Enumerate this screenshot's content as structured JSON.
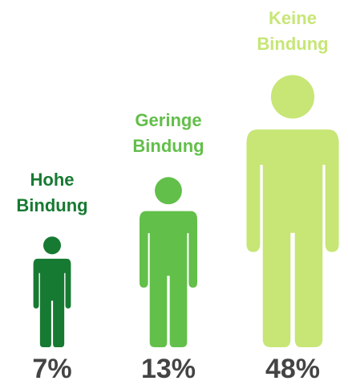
{
  "chart_data": {
    "type": "pictograph",
    "categories": [
      "Hohe Bindung",
      "Geringe Bindung",
      "Keine Bindung"
    ],
    "values": [
      7,
      13,
      48
    ],
    "value_labels": [
      "7%",
      "13%",
      "48%"
    ],
    "colors": [
      "#177a32",
      "#62bf4a",
      "#c7e676"
    ]
  }
}
